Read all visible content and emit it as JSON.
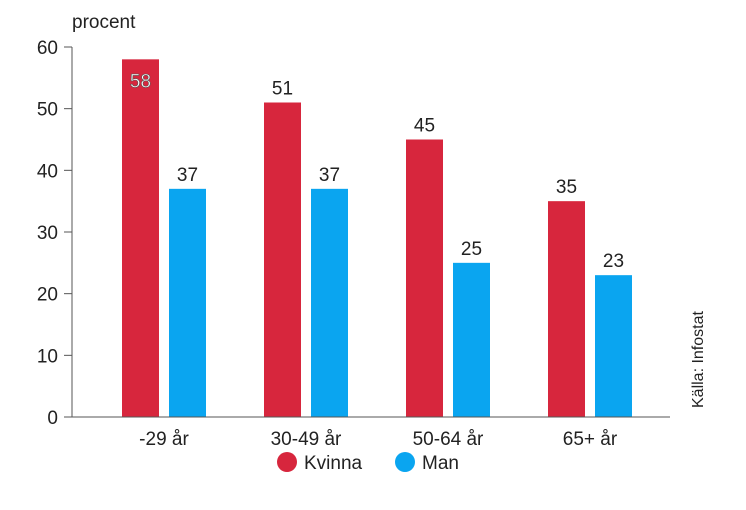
{
  "chart_data": {
    "type": "bar",
    "unit_label": "procent",
    "categories": [
      "-29 år",
      "30-49 år",
      "50-64 år",
      "65+ år"
    ],
    "series": [
      {
        "name": "Kvinna",
        "color": "#d7263d",
        "values": [
          58,
          51,
          45,
          35
        ]
      },
      {
        "name": "Man",
        "color": "#0aa5f0",
        "values": [
          37,
          37,
          25,
          23
        ]
      }
    ],
    "ylim": [
      0,
      60
    ],
    "yticks": [
      "0",
      "10",
      "20",
      "30",
      "40",
      "50",
      "60"
    ],
    "grid": false,
    "legend_position": "bottom",
    "source": "Källa: Infostat"
  }
}
